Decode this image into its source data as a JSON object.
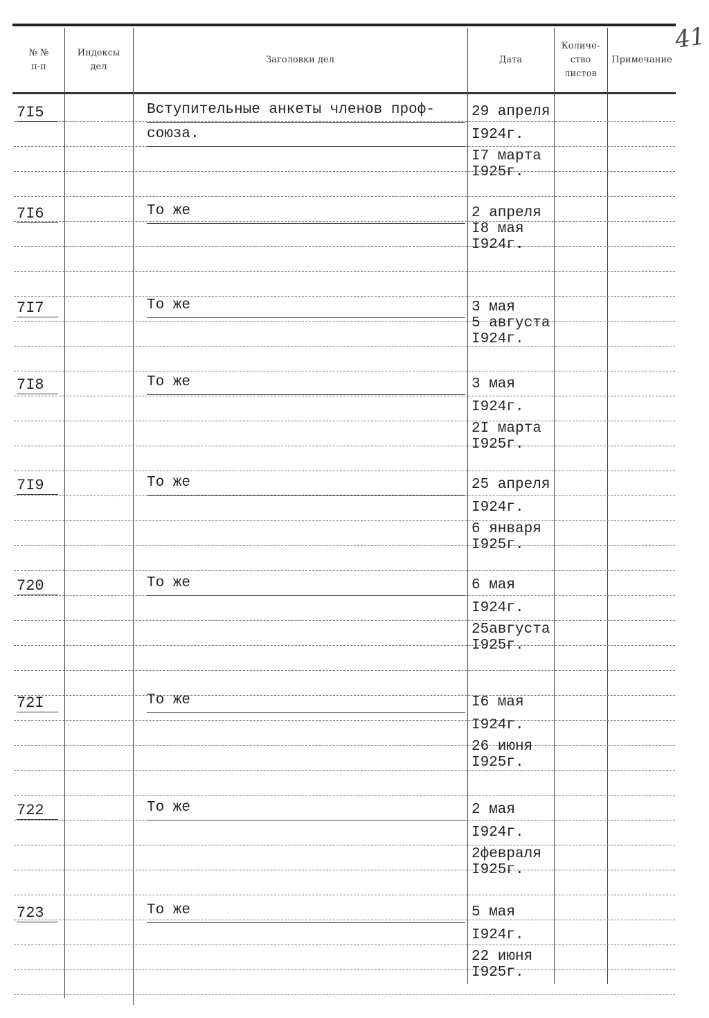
{
  "page_number_handwritten": "41",
  "header": {
    "num": "№ №",
    "num_sub": "п-п",
    "index": "Индексы",
    "index_sub": "дел",
    "title": "Заголовки дел",
    "date": "Дата",
    "sheets": "Количе-ство листов",
    "note": "Примечание"
  },
  "rows": [
    {
      "num": "7I5",
      "title": [
        "Вступительные анкеты членов проф-",
        "союза."
      ],
      "dates": [
        "29 апреля",
        "I924г.",
        "I7 марта",
        "I925г."
      ]
    },
    {
      "num": "7I6",
      "title": [
        "То же"
      ],
      "dates": [
        "2 апреля",
        "I8 мая",
        "I924г."
      ]
    },
    {
      "num": "7I7",
      "title": [
        "То же"
      ],
      "dates": [
        "3 мая",
        "5 августа",
        "I924г."
      ]
    },
    {
      "num": "7I8",
      "title": [
        "То же"
      ],
      "dates": [
        "3 мая",
        "I924г.",
        "2I марта",
        "I925г."
      ]
    },
    {
      "num": "7I9",
      "title": [
        "То же"
      ],
      "dates": [
        "25 апреля",
        "I924г.",
        "6 января",
        "I925г."
      ]
    },
    {
      "num": "720",
      "title": [
        "То же"
      ],
      "dates": [
        "6 мая",
        "I924г.",
        "25августа",
        "I925г."
      ]
    },
    {
      "num": "72I",
      "title": [
        "То же"
      ],
      "dates": [
        "I6 мая",
        "I924г.",
        "26 июня",
        "I925г."
      ]
    },
    {
      "num": "722",
      "title": [
        "То же"
      ],
      "dates": [
        "2 мая",
        "I924г.",
        "2февраля",
        "I925г."
      ]
    },
    {
      "num": "723",
      "title": [
        "То же"
      ],
      "dates": [
        "5 мая",
        "I924г.",
        "22 июня",
        "I925г."
      ]
    }
  ]
}
